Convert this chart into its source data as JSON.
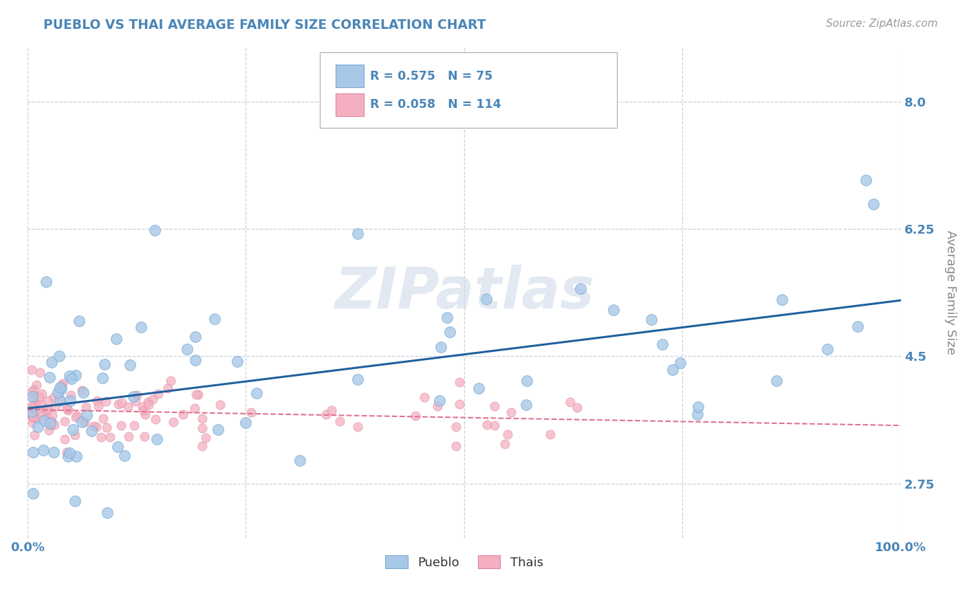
{
  "title": "PUEBLO VS THAI AVERAGE FAMILY SIZE CORRELATION CHART",
  "source_text": "Source: ZipAtlas.com",
  "ylabel": "Average Family Size",
  "xlabel": "",
  "xlim": [
    0,
    1
  ],
  "ylim": [
    2.0,
    8.75
  ],
  "yticks": [
    2.75,
    4.5,
    6.25,
    8.0
  ],
  "xticks": [
    0.0,
    0.25,
    0.5,
    0.75,
    1.0
  ],
  "xticklabels": [
    "0.0%",
    "",
    "",
    "",
    "100.0%"
  ],
  "pueblo_color": "#a8c8e8",
  "pueblo_edge": "#7aaad0",
  "thai_color": "#f4b0c0",
  "thai_edge": "#e080a0",
  "pueblo_line_color": "#2060a0",
  "thai_line_color": "#e07090",
  "pueblo_R": 0.575,
  "pueblo_N": 75,
  "thai_R": 0.058,
  "thai_N": 114,
  "legend_label_pueblo": "Pueblo",
  "legend_label_thai": "Thais",
  "watermark": "ZIPatlas",
  "title_color": "#4a86b8",
  "axis_label_color": "#888888",
  "tick_color": "#4a86b8",
  "grid_color": "#c8d0dc",
  "background_color": "#ffffff",
  "source_color": "#999999"
}
